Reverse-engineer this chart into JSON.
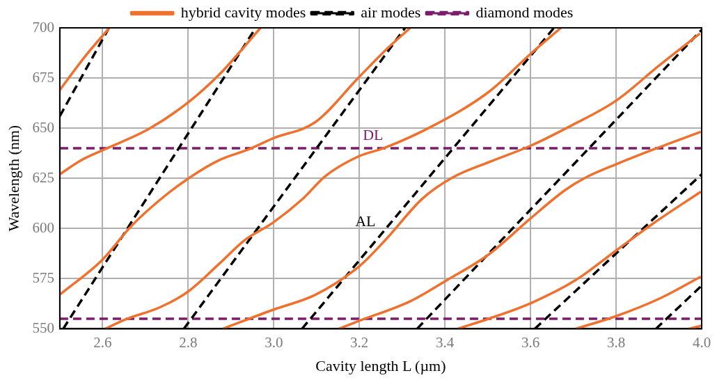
{
  "chart_data": {
    "type": "line",
    "xlabel": "Cavity length L (µm)",
    "ylabel": "Wavelength (nm)",
    "xlim": [
      2.5,
      4.0
    ],
    "xticks": [
      2.6,
      2.8,
      {
        "value": 3,
        "label": "3.0"
      },
      3.2,
      3.4,
      3.6,
      3.8,
      {
        "value": 4,
        "label": "4.0"
      }
    ],
    "ylim": [
      550,
      700
    ],
    "yticks": [
      550,
      575,
      600,
      625,
      650,
      675,
      700
    ],
    "grid": true,
    "legend": "top",
    "line_style": "solid",
    "marker": "none",
    "series": [
      {
        "name": "hybrid cavity modes",
        "color": "#f0702e",
        "x": [
          2.5,
          2.56,
          2.616
        ],
        "values": [
          669,
          686,
          700
        ]
      },
      {
        "color": "#f0702e",
        "x": [
          2.5,
          2.55,
          2.6,
          2.708,
          2.801,
          2.874,
          2.931,
          2.969
        ],
        "values": [
          627,
          634,
          639,
          649.6,
          663,
          677,
          690.5,
          700
        ]
      },
      {
        "color": "#f0702e",
        "x": [
          2.5,
          2.6,
          2.665,
          2.731,
          2.801,
          2.874,
          2.941,
          2.999,
          3.097,
          3.199,
          3.264,
          3.319
        ],
        "values": [
          567,
          584.5,
          600.7,
          613.7,
          625,
          634.2,
          639.4,
          645,
          653,
          675.4,
          689.4,
          700
        ]
      },
      {
        "color": "#f0702e",
        "x": [
          2.606,
          2.653,
          2.736,
          2.801,
          2.874,
          2.931,
          2.999,
          3.069,
          3.12,
          3.199,
          3.257,
          3.374,
          3.502,
          3.6,
          3.671
        ],
        "values": [
          550,
          554.6,
          560.9,
          568.7,
          582.7,
          594,
          603,
          615,
          626,
          636,
          640,
          651.4,
          668,
          687,
          700
        ]
      },
      {
        "color": "#f0702e",
        "x": [
          2.881,
          2.999,
          3.097,
          3.199,
          3.264,
          3.347,
          3.418,
          3.502,
          3.6,
          3.69,
          3.8,
          3.901,
          3.996
        ],
        "values": [
          550,
          559.5,
          566.9,
          581,
          595,
          614.8,
          625.4,
          633,
          641.2,
          650.7,
          663.7,
          681.3,
          697.2
        ]
      },
      {
        "color": "#f0702e",
        "x": [
          3.152,
          3.199,
          3.319,
          3.402,
          3.502,
          3.6,
          3.68,
          3.73,
          3.8,
          3.896,
          3.998
        ],
        "values": [
          550,
          553.9,
          563.7,
          573.9,
          587,
          605,
          619,
          625.5,
          632,
          640.1,
          648.2
        ]
      },
      {
        "color": "#f0702e",
        "x": [
          3.43,
          3.502,
          3.6,
          3.706,
          3.8,
          3.884,
          3.998
        ],
        "values": [
          550,
          555,
          562.7,
          574.3,
          589,
          602.1,
          618.3
        ]
      },
      {
        "color": "#f0702e",
        "x": [
          3.706,
          3.8,
          3.906,
          3.998
        ],
        "values": [
          550,
          556.3,
          565.5,
          576
        ]
      },
      {
        "color": "#f0702e",
        "x": [
          3.97,
          4.0
        ],
        "values": [
          550,
          551.5
        ]
      },
      {
        "name": "air modes",
        "color": "#000000",
        "line_style": "dashed",
        "x": [
          2.5,
          2.615
        ],
        "values": [
          656,
          700
        ]
      },
      {
        "color": "#000000",
        "line_style": "dashed",
        "x": [
          2.508,
          2.958
        ],
        "values": [
          550,
          700
        ]
      },
      {
        "color": "#000000",
        "line_style": "dashed",
        "x": [
          2.79,
          3.307
        ],
        "values": [
          550,
          700
        ]
      },
      {
        "color": "#000000",
        "line_style": "dashed",
        "x": [
          3.066,
          3.655
        ],
        "values": [
          550,
          700
        ]
      },
      {
        "color": "#000000",
        "line_style": "dashed",
        "x": [
          3.335,
          4.0
        ],
        "values": [
          550,
          699
        ]
      },
      {
        "color": "#000000",
        "line_style": "dashed",
        "x": [
          3.61,
          4.0
        ],
        "values": [
          550,
          627
        ]
      },
      {
        "color": "#000000",
        "line_style": "dashed",
        "x": [
          3.893,
          4.0
        ],
        "values": [
          550,
          571.5
        ]
      },
      {
        "name": "diamond modes",
        "color": "#7b1c6c",
        "line_style": "dashed",
        "x": [
          2.5,
          4.0
        ],
        "values": [
          640,
          640
        ]
      },
      {
        "color": "#7b1c6c",
        "line_style": "dashed",
        "x": [
          2.5,
          4.0
        ],
        "values": [
          555,
          555
        ]
      }
    ],
    "annotations": [
      "DL",
      "AL"
    ]
  }
}
